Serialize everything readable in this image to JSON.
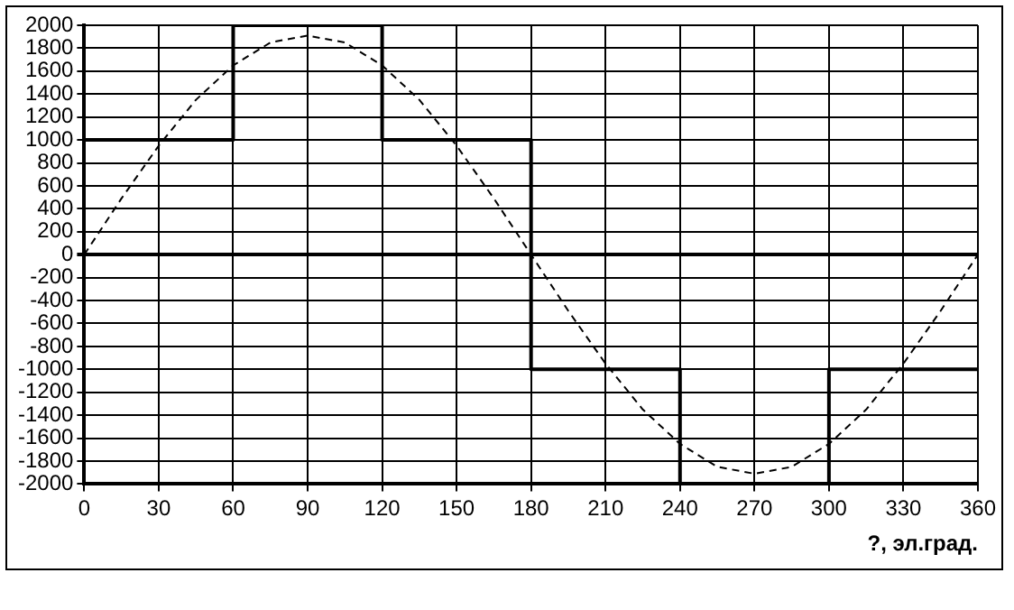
{
  "chart_data": {
    "type": "line",
    "xlabel": "?, эл.град.",
    "xlim": [
      0,
      360
    ],
    "xticks": [
      0,
      30,
      60,
      90,
      120,
      150,
      180,
      210,
      240,
      270,
      300,
      330,
      360
    ],
    "ylim": [
      -2000,
      2000
    ],
    "yticks": [
      -2000,
      -1800,
      -1600,
      -1400,
      -1200,
      -1000,
      -800,
      -600,
      -400,
      -200,
      0,
      200,
      400,
      600,
      800,
      1000,
      1200,
      1400,
      1600,
      1800,
      2000
    ],
    "grid": true,
    "legend": false,
    "series": [
      {
        "type": "step",
        "color": "#000000",
        "line_style": "solid",
        "x": [
          0,
          60,
          120,
          180,
          240,
          300,
          360
        ],
        "values": [
          1000,
          2000,
          1000,
          -1000,
          -2000,
          -1000,
          -1000
        ]
      },
      {
        "type": "line",
        "color": "#000000",
        "line_style": "dashed",
        "x": [
          0,
          15,
          30,
          45,
          60,
          75,
          90,
          105,
          120,
          135,
          150,
          165,
          180,
          195,
          210,
          225,
          240,
          255,
          270,
          285,
          300,
          315,
          330,
          345,
          360
        ],
        "values": [
          0,
          490,
          950,
          1350,
          1650,
          1850,
          1910,
          1850,
          1650,
          1350,
          950,
          490,
          0,
          -490,
          -950,
          -1350,
          -1650,
          -1850,
          -1910,
          -1850,
          -1650,
          -1350,
          -950,
          -490,
          0
        ]
      }
    ]
  }
}
